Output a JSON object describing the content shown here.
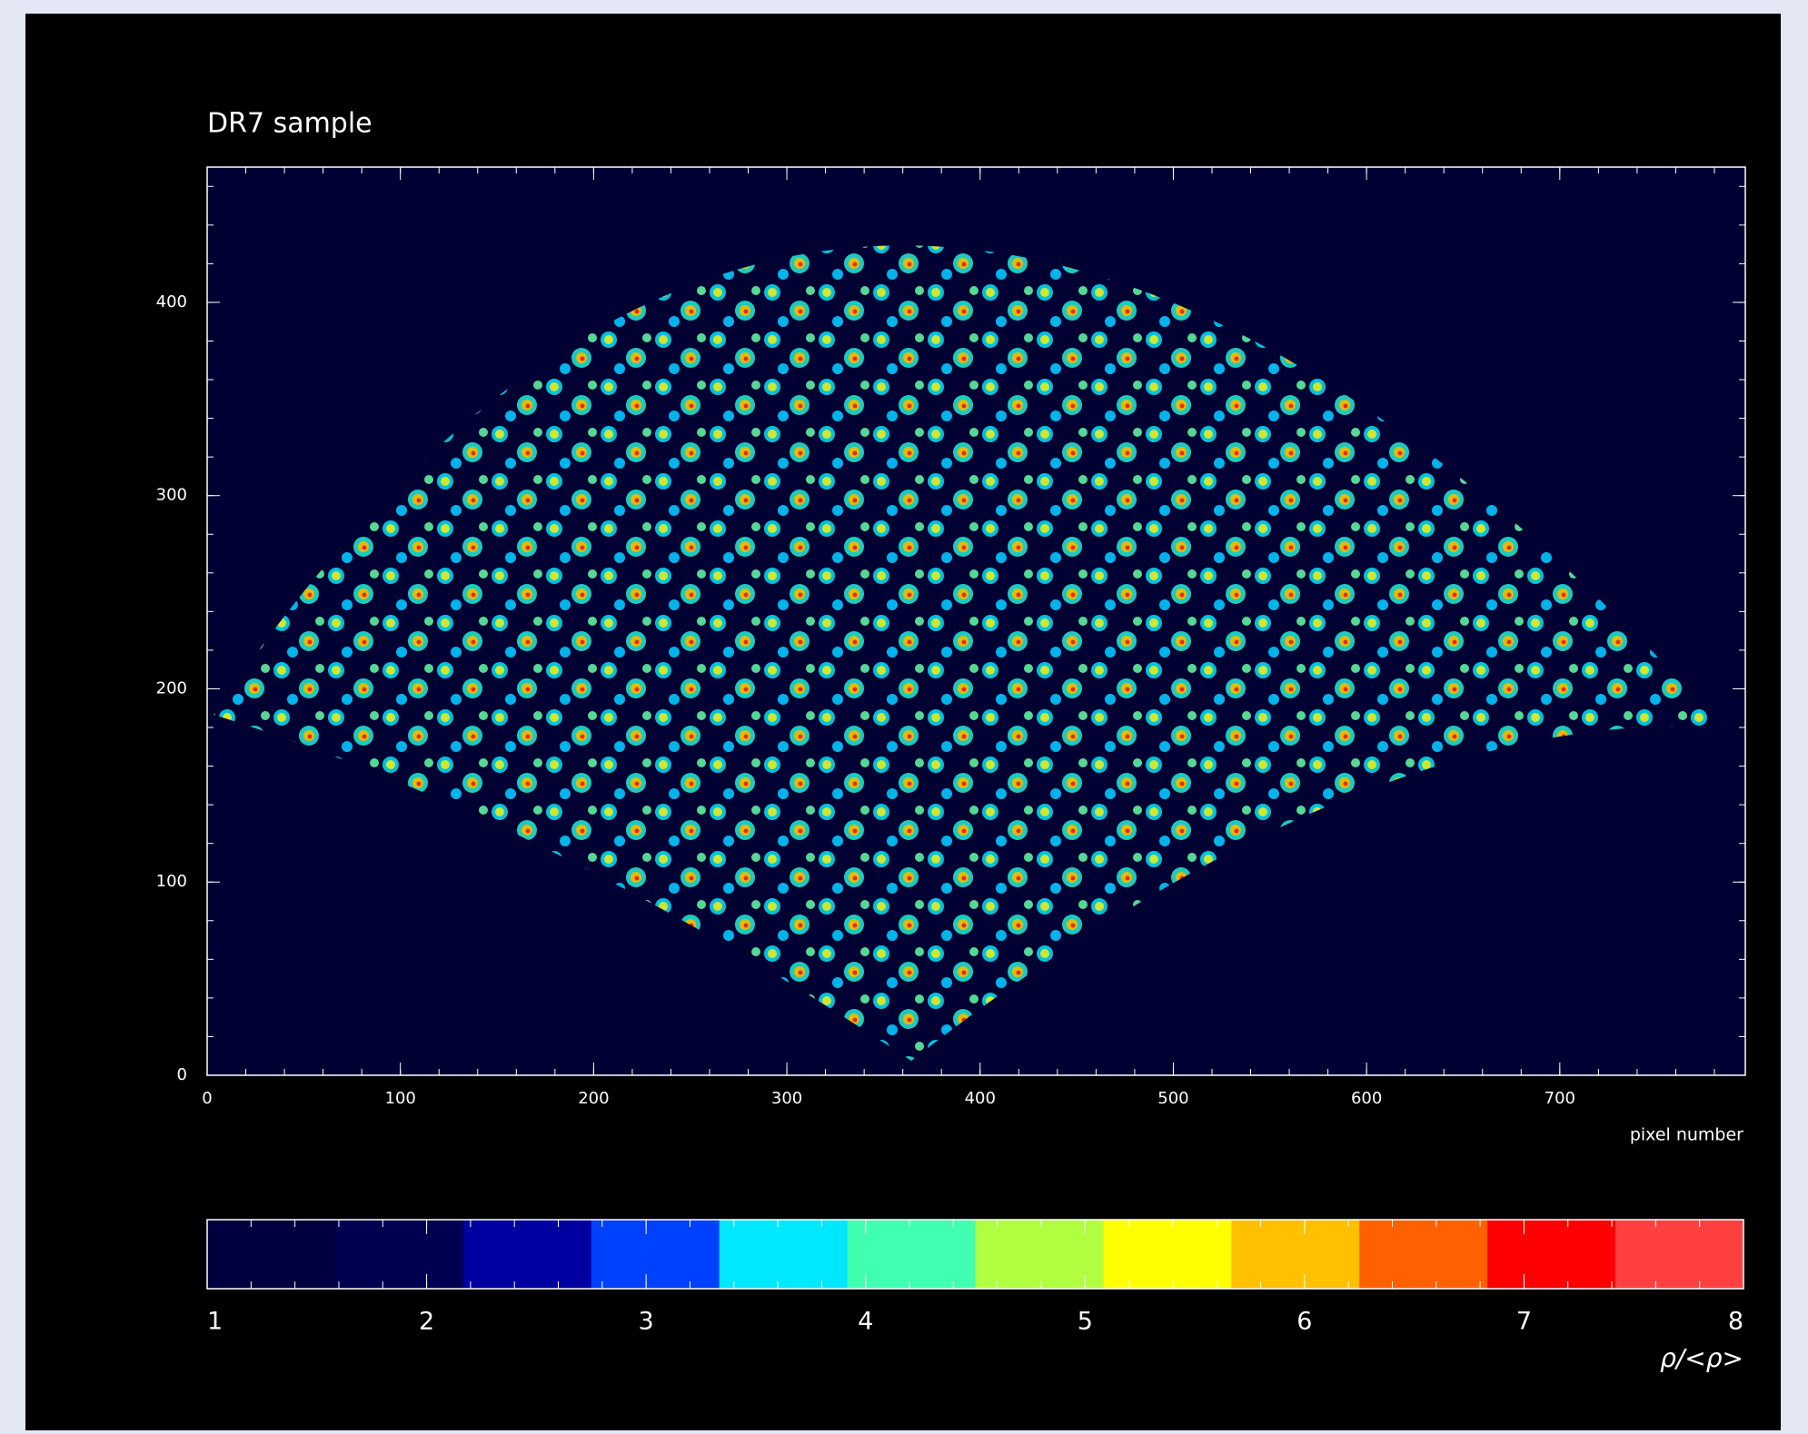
{
  "chart_data": {
    "type": "density-map",
    "title": "DR7 sample",
    "x_label": "pixel number",
    "xlim": [
      0,
      796
    ],
    "ylim": [
      0,
      470
    ],
    "xticks": [
      0,
      100,
      200,
      300,
      400,
      500,
      600,
      700
    ],
    "yticks": [
      0,
      100,
      200,
      300,
      400
    ],
    "minor_tick_step": 20,
    "background": "#000033",
    "axis_color": "#ffffff",
    "colorbar": {
      "label": "ρ/<ρ>",
      "lim": [
        1,
        8
      ],
      "ticks": [
        1,
        2,
        3,
        4,
        5,
        6,
        7,
        8
      ],
      "minor_tick_step": 0.2,
      "colors": [
        "#000040",
        "#000050",
        "#0000a0",
        "#0040ff",
        "#00e8ff",
        "#40ffb0",
        "#b0ff40",
        "#ffff00",
        "#ffc000",
        "#ff6000",
        "#ff0000",
        "#ff4040"
      ]
    }
  }
}
